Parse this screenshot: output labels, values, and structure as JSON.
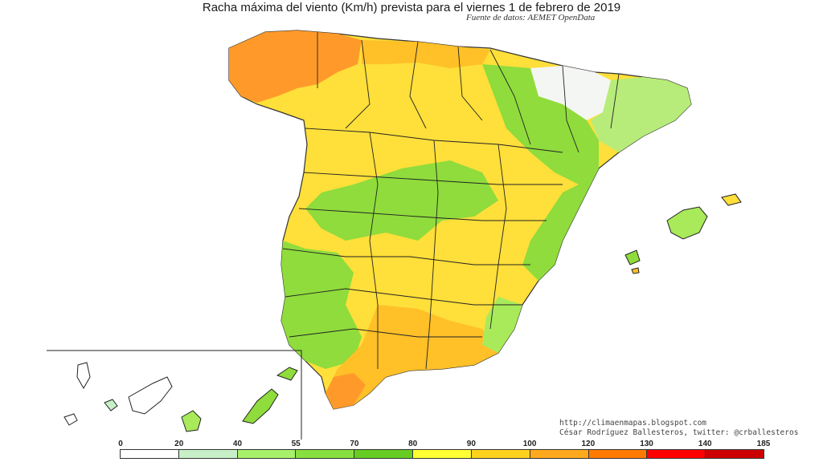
{
  "title": "Racha máxima del viento (Km/h) prevista para el viernes 1 de febrero de 2019",
  "source": "Fuente de datos: AEMET OpenData",
  "credits": {
    "blog": "http://climaenmapas.blogspot.com",
    "author": "César Rodríguez Ballesteros, twitter: @crballesteros"
  },
  "legend": {
    "ticks": [
      "0",
      "20",
      "40",
      "55",
      "70",
      "80",
      "90",
      "100",
      "120",
      "130",
      "140",
      "185"
    ],
    "colors": [
      "#ffffff",
      "#c8f0c8",
      "#a8f06a",
      "#88e040",
      "#66cc22",
      "#ffff33",
      "#ffd21e",
      "#ffaa1e",
      "#ff7a00",
      "#ff0000",
      "#cc0000",
      "#a02020"
    ]
  },
  "map": {
    "region": "Spain",
    "insets": [
      "Canary Islands"
    ],
    "dominant_ranges": {
      "northwest_galicia": "100-120",
      "central_plateau": "80-90",
      "ebro_valley": "0-40",
      "east_coast": "55-70"
    }
  }
}
